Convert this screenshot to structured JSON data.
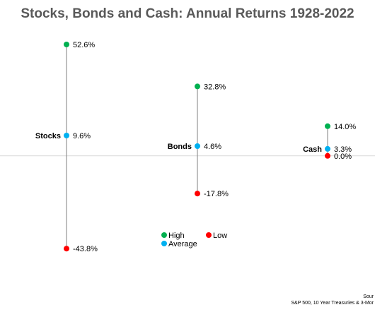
{
  "chart_data": {
    "type": "scatter",
    "title": "Stocks, Bonds and Cash: Annual Returns 1928-2022",
    "categories": [
      "Stocks",
      "Bonds",
      "Cash"
    ],
    "series": [
      {
        "name": "High",
        "values": [
          52.6,
          32.8,
          14.0
        ],
        "labels": [
          "52.6%",
          "32.8%",
          "14.0%"
        ],
        "color": "#00b050"
      },
      {
        "name": "Average",
        "values": [
          9.6,
          4.6,
          3.3
        ],
        "labels": [
          "9.6%",
          "4.6%",
          "3.3%"
        ],
        "color": "#00b0f0"
      },
      {
        "name": "Low",
        "values": [
          -43.8,
          -17.8,
          0.0
        ],
        "labels": [
          "-43.8%",
          "-17.8%",
          "0.0%"
        ],
        "color": "#ff0000"
      }
    ],
    "ylim": [
      -60,
      60
    ],
    "grid": false,
    "zero_line": true,
    "legend_placement": "bottom-center",
    "source_lines": [
      "Sour",
      "S&P 500, 10 Year Treasuries & 3-Mor"
    ]
  }
}
